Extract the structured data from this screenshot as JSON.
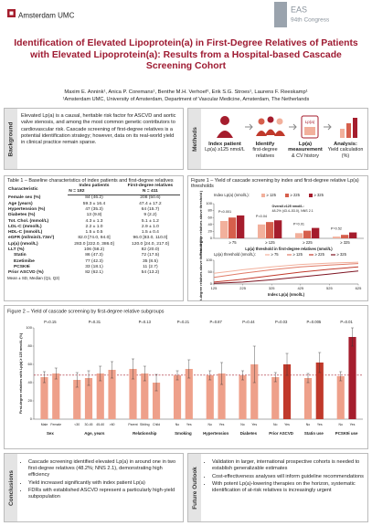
{
  "header": {
    "logo": "Amsterdam UMC",
    "congress_short": "EAS",
    "congress": "94th Congress"
  },
  "title": "Identification of Elevated Lipoprotein(a) in First-Degree Relatives of Patients with Elevated Lipoprotein(a): Results from a Hospital-based Cascade Screening Cohort",
  "authors": "Maxim E. Annink¹, Anica P. Coremans¹, Benthe M.H. Verhoef¹, Erik S.G. Stroes¹, Laurens F. Reeskamp¹",
  "affiliation": "¹Amsterdam UMC, University of Amsterdam, Department of Vascular Medicine, Amsterdam, The Netherlands",
  "background": {
    "label": "Background",
    "text": "Elevated Lp(a) is a causal, heritable risk factor for ASCVD and aortic valve stenosis, and among the most common genetic contributors to cardiovascular risk. Cascade screening of first-degree relatives is a potential identification strategy; however, data on its real-world yield in clinical practice remain sparse."
  },
  "methods": {
    "label": "Methods",
    "icon_label": "Lp(a)",
    "steps": [
      {
        "title": "Index patient",
        "text": "Lp(a) ≥125 nmol/L"
      },
      {
        "title": "Identify",
        "text": "first-degree relatives"
      },
      {
        "title": "Lp(a) measurement",
        "text": "& CV history"
      },
      {
        "title": "Analysis:",
        "text": "Yield calculation (%)"
      }
    ]
  },
  "table": {
    "title": "Table 1 – Baseline characteristics of index patients and first-degree relatives",
    "header": [
      "Characteristic",
      "Index patients",
      "First-degree relatives"
    ],
    "n": [
      "N = 182",
      "N = 411"
    ],
    "rows": [
      [
        "Female sex (%)",
        "84 (46.2)",
        "208 (50.6)"
      ],
      [
        "Age (years)",
        "59.3 ± 16.4",
        "47.4 ± 17.2"
      ],
      [
        "Hypertension (%)",
        "47 (35.3)",
        "64 (15.7)"
      ],
      [
        "Diabetes (%)",
        "13 (9.8)",
        "9 (2.2)"
      ],
      [
        "Tot. Chol. (mmol/L)",
        "4.3 ± 1.3",
        "5.1 ± 1.2"
      ],
      [
        "LDL-C (mmol/L)",
        "2.2 ± 1.0",
        "2.9 ± 1.0"
      ],
      [
        "HDL-C (mmol/L)",
        "1.5 ± 0.5",
        "1.5 ± 0.4"
      ],
      [
        "eGFR (ml/min/1.73m²)",
        "82.0 [74.0, 94.0]",
        "96.0 [83.0, 110.0]"
      ],
      [
        "Lp(a) (nmol/L)",
        "283.0 [222.0, 386.0]",
        "120.0 [24.0, 217.0]"
      ],
      [
        "LLT (%)",
        "106 (58.2)",
        "82 (20.0)"
      ],
      [
        "Statin",
        "86 (47.3)",
        "72 (17.5)"
      ],
      [
        "Ezetimibe",
        "77 (42.3)",
        "35 (8.5)"
      ],
      [
        "PCSK9i",
        "33 (18.1)",
        "11 (2.7)"
      ],
      [
        "Prior ASCVD (%)",
        "82 (62.1)",
        "54 (13.2)"
      ]
    ],
    "footnote": "Mean ± SD, Median (Q1, Q3)"
  },
  "chart_data": [
    {
      "type": "bar",
      "title": "Figure 1 – Yield of cascade screening by index and first-degree relative Lp(a) thresholds",
      "legend_title": "Index Lp(a) (nmol/L):",
      "categories": [
        "≥ 75",
        "≥ 125",
        "≥ 225",
        "≥ 325"
      ],
      "series": [
        {
          "name": "≥ 125",
          "color": "#f2b09c",
          "values": [
            50,
            40,
            15,
            5
          ]
        },
        {
          "name": "≥ 225",
          "color": "#d65f4c",
          "values": [
            60,
            47,
            22,
            10
          ]
        },
        {
          "name": "≥ 325",
          "color": "#a51d2d",
          "values": [
            66,
            52,
            30,
            17
          ]
        }
      ],
      "annotations": [
        "P<0.001",
        "P=0.04",
        "P=0.01",
        "P=0.52"
      ],
      "note": [
        "Overall ≥125 nmol/L:",
        "48.2% (43.4–53.0), NNS 2.1"
      ],
      "ylim": [
        0,
        100
      ],
      "yticks": [
        0,
        20,
        40,
        60,
        80,
        100
      ],
      "ylabel": "First-degree relatives above threshold (%)",
      "xlabel": "Lp(a) threshold in first-degree relatives (nmol/L)"
    },
    {
      "type": "line",
      "legend_title": "Lp(a) threshold (nmol/L):",
      "x": [
        125,
        225,
        325,
        425,
        525,
        625
      ],
      "series": [
        {
          "name": "≥ 75",
          "color": "#f2b09c",
          "values": [
            45,
            60,
            72,
            82,
            88,
            92
          ]
        },
        {
          "name": "≥ 125",
          "color": "#e07a66",
          "values": [
            28,
            45,
            60,
            72,
            80,
            86
          ]
        },
        {
          "name": "≥ 225",
          "color": "#c0392b",
          "values": [
            8,
            20,
            35,
            50,
            62,
            72
          ]
        },
        {
          "name": "≥ 325",
          "color": "#7d1422",
          "values": [
            3,
            8,
            18,
            30,
            42,
            55
          ]
        }
      ],
      "xlim": [
        125,
        625
      ],
      "xticks": [
        125,
        225,
        325,
        425,
        525,
        625
      ],
      "ylim": [
        0,
        100
      ],
      "yticks": [
        0,
        50,
        100
      ],
      "ylabel": "First-degree relatives above threshold (%)",
      "xlabel": "Index Lp(a) (nmol/L)"
    },
    {
      "type": "bar",
      "title": "Figure 2 – Yield of cascade screening by first-degree relative subgroups",
      "ylabel": "First-degree relatives with Lp(a) ≥ 125 nmol/L (%)",
      "ylim": [
        0,
        100
      ],
      "yticks": [
        0,
        20,
        40,
        60,
        80,
        100
      ],
      "reference": 48.2,
      "groups": [
        {
          "name": "Sex",
          "p": "P=0.15",
          "categories": [
            "Male",
            "Female"
          ],
          "values": [
            46,
            50
          ],
          "errors": [
            6,
            6
          ],
          "colors": [
            "#eea08a",
            "#eea08a"
          ]
        },
        {
          "name": "Age, years",
          "p": "P=0.31",
          "categories": [
            "<30",
            "30-45",
            "45-60",
            ">60"
          ],
          "values": [
            43,
            45,
            50,
            54
          ],
          "errors": [
            8,
            8,
            8,
            9
          ],
          "colors": [
            "#eea08a",
            "#eea08a",
            "#eea08a",
            "#eea08a"
          ]
        },
        {
          "name": "Relationship",
          "p": "P=0.13",
          "categories": [
            "Parent",
            "Sibling",
            "Child"
          ],
          "values": [
            55,
            50,
            40
          ],
          "errors": [
            11,
            8,
            9
          ],
          "colors": [
            "#eea08a",
            "#eea08a",
            "#eea08a"
          ]
        },
        {
          "name": "Smoking",
          "p": "P=0.21",
          "categories": [
            "No",
            "Yes"
          ],
          "values": [
            48,
            55
          ],
          "errors": [
            5,
            10
          ],
          "colors": [
            "#eea08a",
            "#eea08a"
          ]
        },
        {
          "name": "Hypertension",
          "p": "P=0.87",
          "categories": [
            "No",
            "Yes"
          ],
          "values": [
            48,
            50
          ],
          "errors": [
            5,
            12
          ],
          "colors": [
            "#eea08a",
            "#eea08a"
          ]
        },
        {
          "name": "Diabetes",
          "p": "P=0.44",
          "categories": [
            "No",
            "Yes"
          ],
          "values": [
            48,
            60
          ],
          "errors": [
            5,
            20
          ],
          "colors": [
            "#eea08a",
            "#eea08a"
          ]
        },
        {
          "name": "Prior ASCVD",
          "p": "P=0.03",
          "categories": [
            "No",
            "Yes"
          ],
          "values": [
            46,
            60
          ],
          "errors": [
            5,
            12
          ],
          "colors": [
            "#eea08a",
            "#c0392b"
          ]
        },
        {
          "name": "Statin use",
          "p": "P=0.005",
          "categories": [
            "No",
            "Yes"
          ],
          "values": [
            45,
            62
          ],
          "errors": [
            5,
            11
          ],
          "colors": [
            "#eea08a",
            "#c0392b"
          ]
        },
        {
          "name": "PCSK9i use",
          "p": "P=0.01",
          "categories": [
            "No",
            "Yes"
          ],
          "values": [
            47,
            90
          ],
          "errors": [
            5,
            10
          ],
          "colors": [
            "#eea08a",
            "#a51d2d"
          ]
        }
      ]
    }
  ],
  "conclusions": {
    "label": "Conclusions",
    "items": [
      "Cascade screening identified elevated Lp(a) in around one in two first-degree relatives (48.2%; NNS 2.1), demonstrating high efficiency",
      "Yield increased significantly with index patient Lp(a)",
      "FDRs with established ASCVD represent a particularly high-yield subpopulation"
    ]
  },
  "future": {
    "label": "Future Outlook",
    "items": [
      "Validation in larger, international prospective cohorts is needed to establish generalizable estimates",
      "Cost-effectiveness analyses will inform guideline recommendations",
      "With potent Lp(a)-lowering therapies on the horizon, systematic identification of at-risk relatives is increasingly urgent"
    ]
  }
}
